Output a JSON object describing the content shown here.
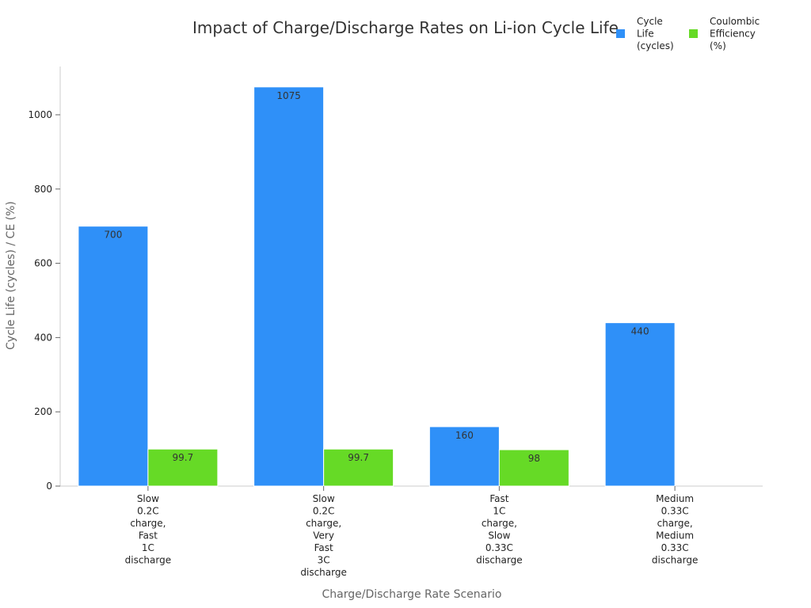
{
  "chart_data": {
    "type": "bar",
    "title": "Impact of Charge/Discharge Rates on Li-ion Cycle Life",
    "xlabel": "Charge/Discharge Rate Scenario",
    "ylabel": "Cycle Life (cycles) / CE (%)",
    "categories": [
      [
        "Slow",
        "0.2C",
        "charge,",
        "Fast",
        "1C",
        "discharge"
      ],
      [
        "Slow",
        "0.2C",
        "charge,",
        "Very",
        "Fast",
        "3C",
        "discharge"
      ],
      [
        "Fast",
        "1C",
        "charge,",
        "Slow",
        "0.33C",
        "discharge"
      ],
      [
        "Medium",
        "0.33C",
        "charge,",
        "Medium",
        "0.33C",
        "discharge"
      ]
    ],
    "series": [
      {
        "name": [
          "Cycle",
          "Life",
          "(cycles)"
        ],
        "color": "#2f90f8",
        "values": [
          700,
          1075,
          160,
          440
        ],
        "labels": [
          "700",
          "1075",
          "160",
          "440"
        ]
      },
      {
        "name": [
          "Coulombic",
          "Efficiency",
          "(%)"
        ],
        "color": "#66da26",
        "values": [
          99.7,
          99.7,
          98,
          null
        ],
        "labels": [
          "99.7",
          "99.7",
          "98",
          ""
        ]
      }
    ],
    "ylim": [
      0,
      1130
    ],
    "yticks": [
      0,
      200,
      400,
      600,
      800,
      1000
    ],
    "ytick_labels": [
      "0",
      "200",
      "400",
      "600",
      "800",
      "1000"
    ],
    "grid": false,
    "legend": "top-right"
  }
}
